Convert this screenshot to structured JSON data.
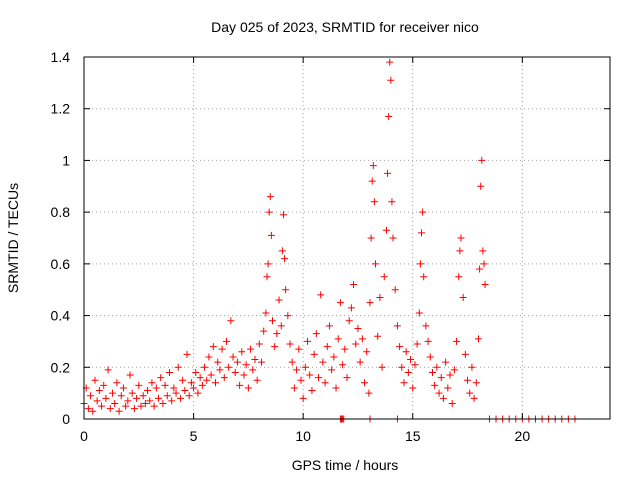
{
  "chart_data": {
    "type": "scatter",
    "title": "Day 025 of 2023, SRMTID for receiver nico",
    "xlabel": "GPS time / hours",
    "ylabel": "SRMTID / TECUs",
    "xlim": [
      0,
      24
    ],
    "ylim": [
      0,
      1.4
    ],
    "xticks": [
      0,
      5,
      10,
      15,
      20
    ],
    "xtick_labels": [
      "0",
      "5",
      "10",
      "15",
      "20"
    ],
    "yticks": [
      0,
      0.2,
      0.4,
      0.6,
      0.8,
      1.0,
      1.2,
      1.4
    ],
    "ytick_labels": [
      "0",
      "0.2",
      "0.4",
      "0.6",
      "0.8",
      "1",
      "1.2",
      "1.4"
    ],
    "grid": true,
    "marker": "+",
    "color": "#ff0000",
    "series": [
      {
        "name": "SRMTID",
        "points": [
          [
            0.0,
            0.06
          ],
          [
            0.1,
            0.12
          ],
          [
            0.2,
            0.04
          ],
          [
            0.3,
            0.09
          ],
          [
            0.4,
            0.03
          ],
          [
            0.5,
            0.15
          ],
          [
            0.6,
            0.07
          ],
          [
            0.7,
            0.11
          ],
          [
            0.8,
            0.05
          ],
          [
            0.9,
            0.13
          ],
          [
            1.0,
            0.08
          ],
          [
            1.1,
            0.19
          ],
          [
            1.2,
            0.04
          ],
          [
            1.3,
            0.1
          ],
          [
            1.4,
            0.06
          ],
          [
            1.5,
            0.14
          ],
          [
            1.6,
            0.03
          ],
          [
            1.7,
            0.09
          ],
          [
            1.8,
            0.12
          ],
          [
            1.9,
            0.05
          ],
          [
            2.0,
            0.07
          ],
          [
            2.1,
            0.17
          ],
          [
            2.2,
            0.1
          ],
          [
            2.3,
            0.04
          ],
          [
            2.4,
            0.08
          ],
          [
            2.5,
            0.13
          ],
          [
            2.6,
            0.05
          ],
          [
            2.7,
            0.09
          ],
          [
            2.8,
            0.06
          ],
          [
            2.9,
            0.11
          ],
          [
            3.0,
            0.07
          ],
          [
            3.1,
            0.14
          ],
          [
            3.2,
            0.05
          ],
          [
            3.3,
            0.12
          ],
          [
            3.4,
            0.08
          ],
          [
            3.5,
            0.16
          ],
          [
            3.6,
            0.06
          ],
          [
            3.7,
            0.13
          ],
          [
            3.8,
            0.09
          ],
          [
            3.9,
            0.18
          ],
          [
            4.0,
            0.07
          ],
          [
            4.1,
            0.12
          ],
          [
            4.2,
            0.1
          ],
          [
            4.3,
            0.2
          ],
          [
            4.4,
            0.08
          ],
          [
            4.5,
            0.15
          ],
          [
            4.6,
            0.11
          ],
          [
            4.7,
            0.25
          ],
          [
            4.8,
            0.09
          ],
          [
            4.9,
            0.14
          ],
          [
            5.0,
            0.12
          ],
          [
            5.1,
            0.18
          ],
          [
            5.2,
            0.1
          ],
          [
            5.3,
            0.16
          ],
          [
            5.4,
            0.13
          ],
          [
            5.5,
            0.2
          ],
          [
            5.6,
            0.15
          ],
          [
            5.7,
            0.24
          ],
          [
            5.8,
            0.17
          ],
          [
            5.9,
            0.28
          ],
          [
            6.0,
            0.14
          ],
          [
            6.1,
            0.22
          ],
          [
            6.2,
            0.19
          ],
          [
            6.3,
            0.27
          ],
          [
            6.4,
            0.16
          ],
          [
            6.5,
            0.3
          ],
          [
            6.6,
            0.2
          ],
          [
            6.7,
            0.38
          ],
          [
            6.8,
            0.24
          ],
          [
            6.9,
            0.18
          ],
          [
            7.0,
            0.22
          ],
          [
            7.1,
            0.13
          ],
          [
            7.2,
            0.26
          ],
          [
            7.3,
            0.17
          ],
          [
            7.4,
            0.21
          ],
          [
            7.5,
            0.12
          ],
          [
            7.6,
            0.27
          ],
          [
            7.7,
            0.19
          ],
          [
            7.8,
            0.23
          ],
          [
            7.9,
            0.15
          ],
          [
            8.0,
            0.29
          ],
          [
            8.1,
            0.22
          ],
          [
            8.2,
            0.34
          ],
          [
            8.3,
            0.41
          ],
          [
            8.35,
            0.55
          ],
          [
            8.4,
            0.6
          ],
          [
            8.45,
            0.8
          ],
          [
            8.5,
            0.86
          ],
          [
            8.55,
            0.71
          ],
          [
            8.6,
            0.38
          ],
          [
            8.7,
            0.28
          ],
          [
            8.8,
            0.33
          ],
          [
            8.9,
            0.46
          ],
          [
            9.0,
            0.36
          ],
          [
            9.05,
            0.65
          ],
          [
            9.1,
            0.79
          ],
          [
            9.15,
            0.62
          ],
          [
            9.2,
            0.5
          ],
          [
            9.3,
            0.4
          ],
          [
            9.4,
            0.29
          ],
          [
            9.5,
            0.22
          ],
          [
            9.6,
            0.12
          ],
          [
            9.7,
            0.19
          ],
          [
            9.8,
            0.27
          ],
          [
            9.9,
            0.15
          ],
          [
            10.0,
            0.08
          ],
          [
            10.1,
            0.2
          ],
          [
            10.2,
            0.3
          ],
          [
            10.3,
            0.17
          ],
          [
            10.4,
            0.11
          ],
          [
            10.5,
            0.25
          ],
          [
            10.6,
            0.33
          ],
          [
            10.7,
            0.16
          ],
          [
            10.8,
            0.48
          ],
          [
            10.9,
            0.22
          ],
          [
            11.0,
            0.14
          ],
          [
            11.1,
            0.28
          ],
          [
            11.2,
            0.36
          ],
          [
            11.3,
            0.19
          ],
          [
            11.4,
            0.24
          ],
          [
            11.5,
            0.12
          ],
          [
            11.6,
            0.31
          ],
          [
            11.7,
            0.45
          ],
          [
            11.8,
            0.21
          ],
          [
            11.9,
            0.27
          ],
          [
            12.0,
            0.16
          ],
          [
            12.1,
            0.38
          ],
          [
            12.2,
            0.43
          ],
          [
            12.3,
            0.52
          ],
          [
            12.4,
            0.29
          ],
          [
            12.5,
            0.35
          ],
          [
            12.6,
            0.22
          ],
          [
            12.7,
            0.31
          ],
          [
            12.8,
            0.14
          ],
          [
            12.9,
            0.26
          ],
          [
            13.0,
            0.1
          ],
          [
            13.05,
            0.45
          ],
          [
            13.1,
            0.7
          ],
          [
            13.15,
            0.92
          ],
          [
            13.2,
            0.98
          ],
          [
            13.25,
            0.84
          ],
          [
            13.3,
            0.6
          ],
          [
            13.4,
            0.32
          ],
          [
            13.5,
            0.47
          ],
          [
            13.6,
            0.2
          ],
          [
            13.7,
            0.55
          ],
          [
            13.8,
            0.73
          ],
          [
            13.85,
            0.95
          ],
          [
            13.9,
            1.17
          ],
          [
            13.95,
            1.38
          ],
          [
            14.0,
            1.31
          ],
          [
            14.05,
            0.84
          ],
          [
            14.1,
            0.7
          ],
          [
            14.2,
            0.5
          ],
          [
            14.3,
            0.36
          ],
          [
            14.4,
            0.28
          ],
          [
            14.5,
            0.2
          ],
          [
            14.6,
            0.14
          ],
          [
            14.7,
            0.26
          ],
          [
            14.8,
            0.18
          ],
          [
            14.9,
            0.23
          ],
          [
            15.0,
            0.12
          ],
          [
            15.1,
            0.21
          ],
          [
            15.2,
            0.29
          ],
          [
            15.3,
            0.41
          ],
          [
            15.35,
            0.6
          ],
          [
            15.4,
            0.72
          ],
          [
            15.45,
            0.8
          ],
          [
            15.5,
            0.55
          ],
          [
            15.6,
            0.36
          ],
          [
            15.7,
            0.3
          ],
          [
            15.8,
            0.24
          ],
          [
            15.9,
            0.18
          ],
          [
            16.0,
            0.13
          ],
          [
            16.1,
            0.2
          ],
          [
            16.2,
            0.1
          ],
          [
            16.3,
            0.16
          ],
          [
            16.4,
            0.08
          ],
          [
            16.5,
            0.22
          ],
          [
            16.6,
            0.12
          ],
          [
            16.7,
            0.17
          ],
          [
            16.8,
            0.06
          ],
          [
            16.9,
            0.19
          ],
          [
            17.0,
            0.3
          ],
          [
            17.1,
            0.55
          ],
          [
            17.15,
            0.65
          ],
          [
            17.2,
            0.7
          ],
          [
            17.3,
            0.47
          ],
          [
            17.4,
            0.25
          ],
          [
            17.5,
            0.15
          ],
          [
            17.6,
            0.1
          ],
          [
            17.7,
            0.2
          ],
          [
            17.8,
            0.08
          ],
          [
            17.9,
            0.14
          ],
          [
            18.0,
            0.31
          ],
          [
            18.05,
            0.58
          ],
          [
            18.1,
            0.9
          ],
          [
            18.15,
            1.0
          ],
          [
            18.2,
            0.65
          ],
          [
            18.25,
            0.6
          ],
          [
            18.3,
            0.52
          ],
          [
            18.5,
            0.0
          ],
          [
            18.8,
            0.0
          ],
          [
            19.1,
            0.0
          ],
          [
            19.4,
            0.0
          ],
          [
            19.7,
            0.0
          ],
          [
            20.0,
            0.0
          ],
          [
            20.3,
            0.0
          ],
          [
            20.6,
            0.0
          ],
          [
            20.9,
            0.0
          ],
          [
            21.2,
            0.0
          ],
          [
            21.5,
            0.0
          ],
          [
            21.8,
            0.0
          ],
          [
            22.1,
            0.0
          ],
          [
            22.4,
            0.0
          ],
          [
            11.7,
            0.0
          ],
          [
            11.75,
            0.0
          ],
          [
            11.8,
            0.0
          ],
          [
            11.85,
            0.0
          ],
          [
            13.05,
            0.0
          ],
          [
            14.3,
            0.0
          ]
        ]
      }
    ]
  }
}
